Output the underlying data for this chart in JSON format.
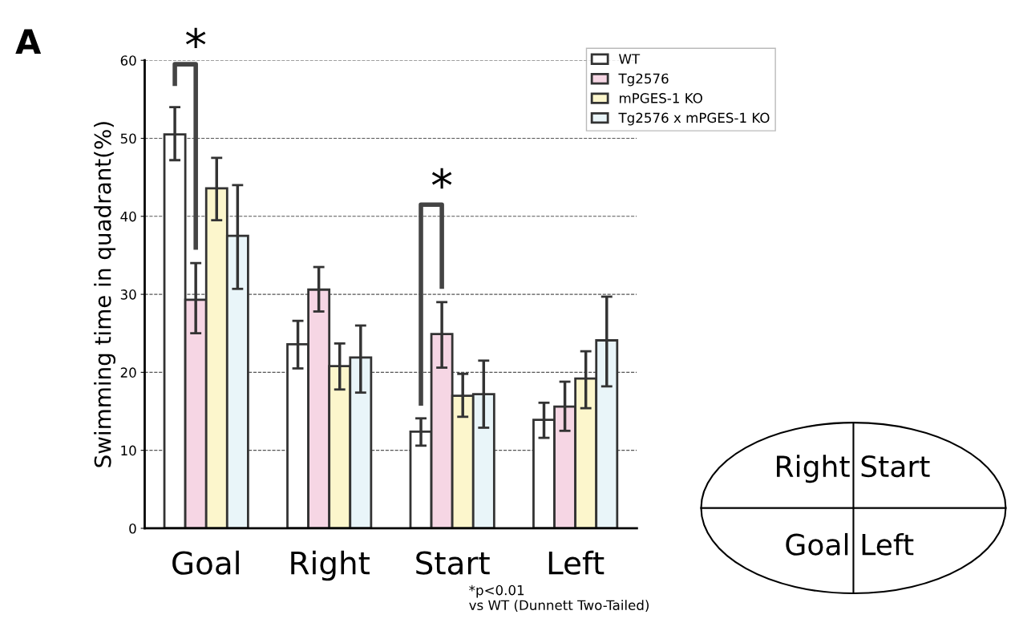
{
  "chart_data": {
    "type": "bar",
    "ylabel": "Swimming time in quadrant(%)",
    "categories": [
      "Goal",
      "Right",
      "Start",
      "Left"
    ],
    "series": [
      {
        "name": "WT",
        "color": "#ffffff",
        "values": [
          50.5,
          23.6,
          12.4,
          13.9
        ],
        "errors": [
          [
            47.2,
            54.0
          ],
          [
            20.5,
            26.6
          ],
          [
            10.6,
            14.1
          ],
          [
            11.6,
            16.1
          ]
        ]
      },
      {
        "name": "Tg2576",
        "color": "#f6d6e4",
        "values": [
          29.3,
          30.6,
          24.9,
          15.6
        ],
        "errors": [
          [
            25.0,
            34.0
          ],
          [
            27.8,
            33.5
          ],
          [
            20.6,
            29.0
          ],
          [
            12.5,
            18.8
          ]
        ]
      },
      {
        "name": "mPGES-1 KO",
        "color": "#fcf6cc",
        "values": [
          43.6,
          20.8,
          17.0,
          19.2
        ],
        "errors": [
          [
            39.5,
            47.5
          ],
          [
            17.8,
            23.7
          ],
          [
            14.3,
            19.8
          ],
          [
            15.4,
            22.7
          ]
        ]
      },
      {
        "name": "Tg2576 x mPGES-1 KO",
        "color": "#e9f5f9",
        "values": [
          37.5,
          21.9,
          17.2,
          24.1
        ],
        "errors": [
          [
            30.7,
            44.0
          ],
          [
            17.4,
            26.0
          ],
          [
            12.9,
            21.5
          ],
          [
            18.2,
            29.7
          ]
        ]
      }
    ],
    "ylim": [
      0,
      60
    ],
    "yticks": [
      0,
      10,
      20,
      30,
      40,
      50,
      60
    ],
    "grid": "y",
    "legend": "top right",
    "annotations": [
      "A",
      "*",
      "*",
      "*p<0.01\nvs WT (Dunnett Two-Tailed)",
      "Right",
      "Start",
      "Goal",
      "Left"
    ]
  }
}
